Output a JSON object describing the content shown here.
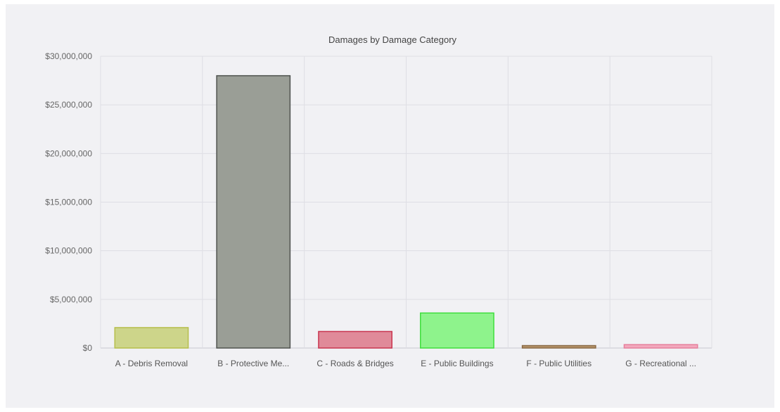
{
  "chart_data": {
    "type": "bar",
    "title": "Damages by Damage Category",
    "xlabel": "",
    "ylabel": "",
    "ylim": [
      0,
      30000000
    ],
    "yticks": [
      0,
      5000000,
      10000000,
      15000000,
      20000000,
      25000000,
      30000000
    ],
    "ytick_labels": [
      "$0",
      "$5,000,000",
      "$10,000,000",
      "$15,000,000",
      "$20,000,000",
      "$25,000,000",
      "$30,000,000"
    ],
    "categories": [
      "A - Debris Removal",
      "B - Protective Me...",
      "C - Roads & Bridges",
      "E - Public Buildings",
      "F - Public Utilities",
      "G - Recreational ..."
    ],
    "values": [
      2100000,
      28000000,
      1700000,
      3600000,
      250000,
      350000
    ],
    "bar_colors": [
      "#cdd58a",
      "#9a9e96",
      "#e08a99",
      "#8ef38c",
      "#b6946a",
      "#f2a9bd"
    ],
    "border_colors": [
      "#b6be4b",
      "#4f534f",
      "#c9354f",
      "#3fde3d",
      "#8a6a45",
      "#e67f9c"
    ],
    "grid": true,
    "legend": "none"
  }
}
